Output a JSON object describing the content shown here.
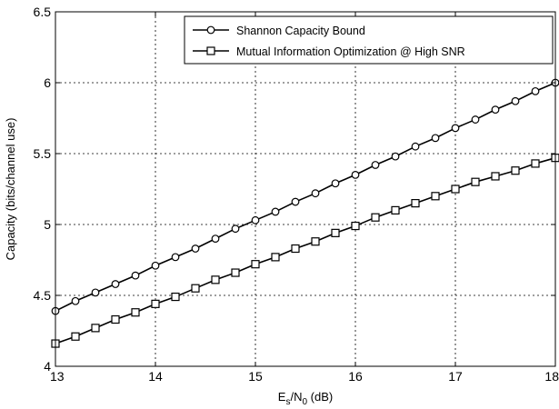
{
  "chart_data": {
    "type": "line",
    "title": "",
    "xlabel_main": "E",
    "xlabel_sub1": "s",
    "xlabel_mid": "/N",
    "xlabel_sub2": "0",
    "xlabel_unit": " (dB)",
    "ylabel": "Capacity (bits/channel use)",
    "xlim": [
      13,
      18
    ],
    "ylim": [
      4,
      6.5
    ],
    "xticks": [
      "13",
      "14",
      "15",
      "16",
      "17",
      "18"
    ],
    "yticks": [
      "4",
      "4.5",
      "5",
      "5.5",
      "6",
      "6.5"
    ],
    "grid": true,
    "legend_position": "top-right",
    "x": [
      13.0,
      13.2,
      13.4,
      13.6,
      13.8,
      14.0,
      14.2,
      14.4,
      14.6,
      14.8,
      15.0,
      15.2,
      15.4,
      15.6,
      15.8,
      16.0,
      16.2,
      16.4,
      16.6,
      16.8,
      17.0,
      17.2,
      17.4,
      17.6,
      17.8,
      18.0
    ],
    "series": [
      {
        "name": "Shannon Capacity Bound",
        "marker": "circle",
        "values": [
          4.39,
          4.46,
          4.52,
          4.58,
          4.64,
          4.71,
          4.77,
          4.83,
          4.9,
          4.97,
          5.03,
          5.09,
          5.16,
          5.22,
          5.29,
          5.35,
          5.42,
          5.48,
          5.55,
          5.61,
          5.68,
          5.74,
          5.81,
          5.87,
          5.94,
          6.0
        ]
      },
      {
        "name": "Mutual Information Optimization @ High SNR",
        "marker": "square",
        "values": [
          4.16,
          4.21,
          4.27,
          4.33,
          4.38,
          4.44,
          4.49,
          4.55,
          4.61,
          4.66,
          4.72,
          4.77,
          4.83,
          4.88,
          4.94,
          4.99,
          5.05,
          5.1,
          5.15,
          5.2,
          5.25,
          5.3,
          5.34,
          5.38,
          5.43,
          5.47
        ]
      }
    ]
  }
}
